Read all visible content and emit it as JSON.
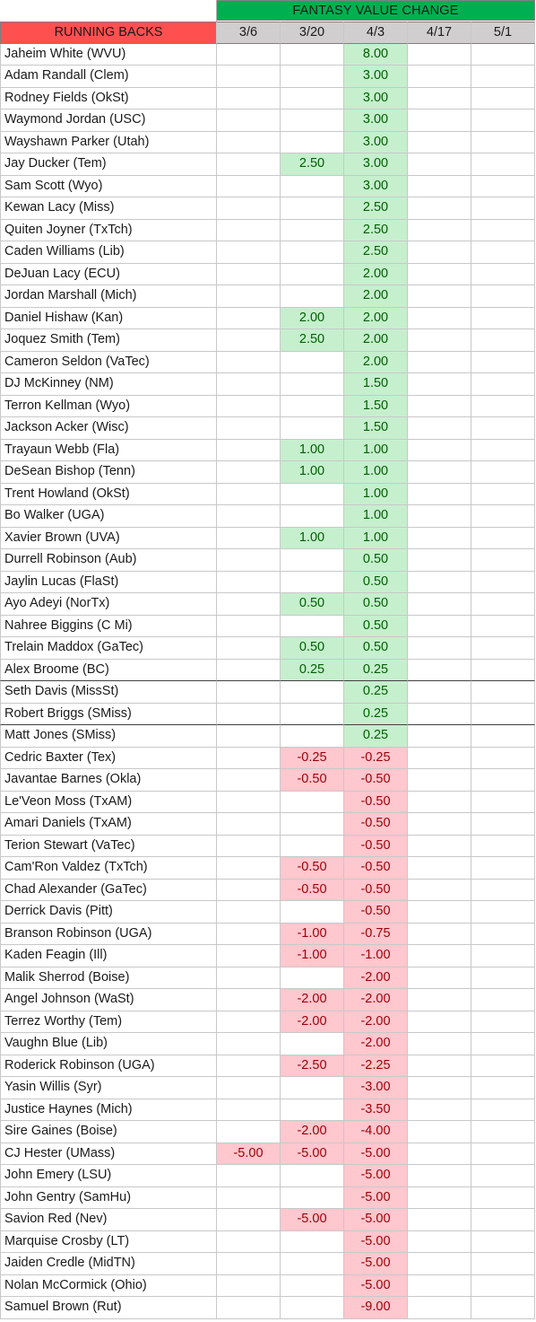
{
  "title": "FANTASY VALUE CHANGE",
  "position_header": "RUNNING BACKS",
  "dates": [
    "3/6",
    "3/20",
    "4/3",
    "4/17",
    "5/1"
  ],
  "colors": {
    "header_green": "#00b050",
    "header_red": "#ff5050",
    "date_gray": "#d0cece",
    "positive_fill": "#c6efce",
    "negative_fill": "#ffc7ce"
  },
  "players": [
    {
      "name": "Jaheim White (WVU)",
      "values": [
        "",
        "",
        "8.00",
        "",
        ""
      ]
    },
    {
      "name": "Adam Randall (Clem)",
      "values": [
        "",
        "",
        "3.00",
        "",
        ""
      ]
    },
    {
      "name": "Rodney Fields (OkSt)",
      "values": [
        "",
        "",
        "3.00",
        "",
        ""
      ]
    },
    {
      "name": "Waymond Jordan (USC)",
      "values": [
        "",
        "",
        "3.00",
        "",
        ""
      ]
    },
    {
      "name": "Wayshawn Parker (Utah)",
      "values": [
        "",
        "",
        "3.00",
        "",
        ""
      ]
    },
    {
      "name": "Jay Ducker (Tem)",
      "values": [
        "",
        "2.50",
        "3.00",
        "",
        ""
      ]
    },
    {
      "name": "Sam Scott (Wyo)",
      "values": [
        "",
        "",
        "3.00",
        "",
        ""
      ]
    },
    {
      "name": "Kewan Lacy (Miss)",
      "values": [
        "",
        "",
        "2.50",
        "",
        ""
      ]
    },
    {
      "name": "Quiten Joyner (TxTch)",
      "values": [
        "",
        "",
        "2.50",
        "",
        ""
      ]
    },
    {
      "name": "Caden Williams (Lib)",
      "values": [
        "",
        "",
        "2.50",
        "",
        ""
      ]
    },
    {
      "name": "DeJuan Lacy (ECU)",
      "values": [
        "",
        "",
        "2.00",
        "",
        ""
      ]
    },
    {
      "name": "Jordan Marshall (Mich)",
      "values": [
        "",
        "",
        "2.00",
        "",
        ""
      ]
    },
    {
      "name": "Daniel Hishaw (Kan)",
      "values": [
        "",
        "2.00",
        "2.00",
        "",
        ""
      ]
    },
    {
      "name": "Joquez Smith (Tem)",
      "values": [
        "",
        "2.50",
        "2.00",
        "",
        ""
      ]
    },
    {
      "name": "Cameron Seldon (VaTec)",
      "values": [
        "",
        "",
        "2.00",
        "",
        ""
      ]
    },
    {
      "name": "DJ McKinney (NM)",
      "values": [
        "",
        "",
        "1.50",
        "",
        ""
      ]
    },
    {
      "name": "Terron Kellman (Wyo)",
      "values": [
        "",
        "",
        "1.50",
        "",
        ""
      ]
    },
    {
      "name": "Jackson Acker (Wisc)",
      "values": [
        "",
        "",
        "1.50",
        "",
        ""
      ]
    },
    {
      "name": "Trayaun Webb (Fla)",
      "values": [
        "",
        "1.00",
        "1.00",
        "",
        ""
      ]
    },
    {
      "name": "DeSean Bishop (Tenn)",
      "values": [
        "",
        "1.00",
        "1.00",
        "",
        ""
      ]
    },
    {
      "name": "Trent Howland (OkSt)",
      "values": [
        "",
        "",
        "1.00",
        "",
        ""
      ]
    },
    {
      "name": "Bo Walker (UGA)",
      "values": [
        "",
        "",
        "1.00",
        "",
        ""
      ]
    },
    {
      "name": "Xavier Brown (UVA)",
      "values": [
        "",
        "1.00",
        "1.00",
        "",
        ""
      ]
    },
    {
      "name": "Durrell Robinson (Aub)",
      "values": [
        "",
        "",
        "0.50",
        "",
        ""
      ]
    },
    {
      "name": "Jaylin Lucas (FlaSt)",
      "values": [
        "",
        "",
        "0.50",
        "",
        ""
      ]
    },
    {
      "name": "Ayo Adeyi (NorTx)",
      "values": [
        "",
        "0.50",
        "0.50",
        "",
        ""
      ]
    },
    {
      "name": "Nahree Biggins (C Mi)",
      "values": [
        "",
        "",
        "0.50",
        "",
        ""
      ]
    },
    {
      "name": "Trelain Maddox (GaTec)",
      "values": [
        "",
        "0.50",
        "0.50",
        "",
        ""
      ]
    },
    {
      "name": "Alex Broome (BC)",
      "values": [
        "",
        "0.25",
        "0.25",
        "",
        ""
      ]
    },
    {
      "name": "Seth Davis (MissSt)",
      "values": [
        "",
        "",
        "0.25",
        "",
        ""
      ]
    },
    {
      "name": "Robert Briggs (SMiss)",
      "values": [
        "",
        "",
        "0.25",
        "",
        ""
      ]
    },
    {
      "name": "Matt Jones (SMiss)",
      "values": [
        "",
        "",
        "0.25",
        "",
        ""
      ]
    },
    {
      "name": "Cedric Baxter (Tex)",
      "values": [
        "",
        "-0.25",
        "-0.25",
        "",
        ""
      ]
    },
    {
      "name": "Javantae Barnes (Okla)",
      "values": [
        "",
        "-0.50",
        "-0.50",
        "",
        ""
      ]
    },
    {
      "name": "Le'Veon Moss (TxAM)",
      "values": [
        "",
        "",
        "-0.50",
        "",
        ""
      ]
    },
    {
      "name": "Amari Daniels (TxAM)",
      "values": [
        "",
        "",
        "-0.50",
        "",
        ""
      ]
    },
    {
      "name": "Terion Stewart (VaTec)",
      "values": [
        "",
        "",
        "-0.50",
        "",
        ""
      ]
    },
    {
      "name": "Cam'Ron Valdez (TxTch)",
      "values": [
        "",
        "-0.50",
        "-0.50",
        "",
        ""
      ]
    },
    {
      "name": "Chad Alexander (GaTec)",
      "values": [
        "",
        "-0.50",
        "-0.50",
        "",
        ""
      ]
    },
    {
      "name": "Derrick Davis (Pitt)",
      "values": [
        "",
        "",
        "-0.50",
        "",
        ""
      ]
    },
    {
      "name": "Branson Robinson (UGA)",
      "values": [
        "",
        "-1.00",
        "-0.75",
        "",
        ""
      ]
    },
    {
      "name": "Kaden Feagin (Ill)",
      "values": [
        "",
        "-1.00",
        "-1.00",
        "",
        ""
      ]
    },
    {
      "name": "Malik Sherrod (Boise)",
      "values": [
        "",
        "",
        "-2.00",
        "",
        ""
      ]
    },
    {
      "name": "Angel Johnson (WaSt)",
      "values": [
        "",
        "-2.00",
        "-2.00",
        "",
        ""
      ]
    },
    {
      "name": "Terrez Worthy (Tem)",
      "values": [
        "",
        "-2.00",
        "-2.00",
        "",
        ""
      ]
    },
    {
      "name": "Vaughn Blue (Lib)",
      "values": [
        "",
        "",
        "-2.00",
        "",
        ""
      ]
    },
    {
      "name": "Roderick Robinson (UGA)",
      "values": [
        "",
        "-2.50",
        "-2.25",
        "",
        ""
      ]
    },
    {
      "name": "Yasin Willis (Syr)",
      "values": [
        "",
        "",
        "-3.00",
        "",
        ""
      ]
    },
    {
      "name": "Justice Haynes (Mich)",
      "values": [
        "",
        "",
        "-3.50",
        "",
        ""
      ]
    },
    {
      "name": "Sire Gaines (Boise)",
      "values": [
        "",
        "-2.00",
        "-4.00",
        "",
        ""
      ]
    },
    {
      "name": "CJ Hester (UMass)",
      "values": [
        "-5.00",
        "-5.00",
        "-5.00",
        "",
        ""
      ]
    },
    {
      "name": "John Emery (LSU)",
      "values": [
        "",
        "",
        "-5.00",
        "",
        ""
      ]
    },
    {
      "name": "John Gentry (SamHu)",
      "values": [
        "",
        "",
        "-5.00",
        "",
        ""
      ]
    },
    {
      "name": "Savion Red (Nev)",
      "values": [
        "",
        "-5.00",
        "-5.00",
        "",
        ""
      ]
    },
    {
      "name": "Marquise Crosby (LT)",
      "values": [
        "",
        "",
        "-5.00",
        "",
        ""
      ]
    },
    {
      "name": "Jaiden Credle (MidTN)",
      "values": [
        "",
        "",
        "-5.00",
        "",
        ""
      ]
    },
    {
      "name": "Nolan McCormick (Ohio)",
      "values": [
        "",
        "",
        "-5.00",
        "",
        ""
      ]
    },
    {
      "name": "Samuel Brown (Rut)",
      "values": [
        "",
        "",
        "-9.00",
        "",
        ""
      ]
    }
  ]
}
